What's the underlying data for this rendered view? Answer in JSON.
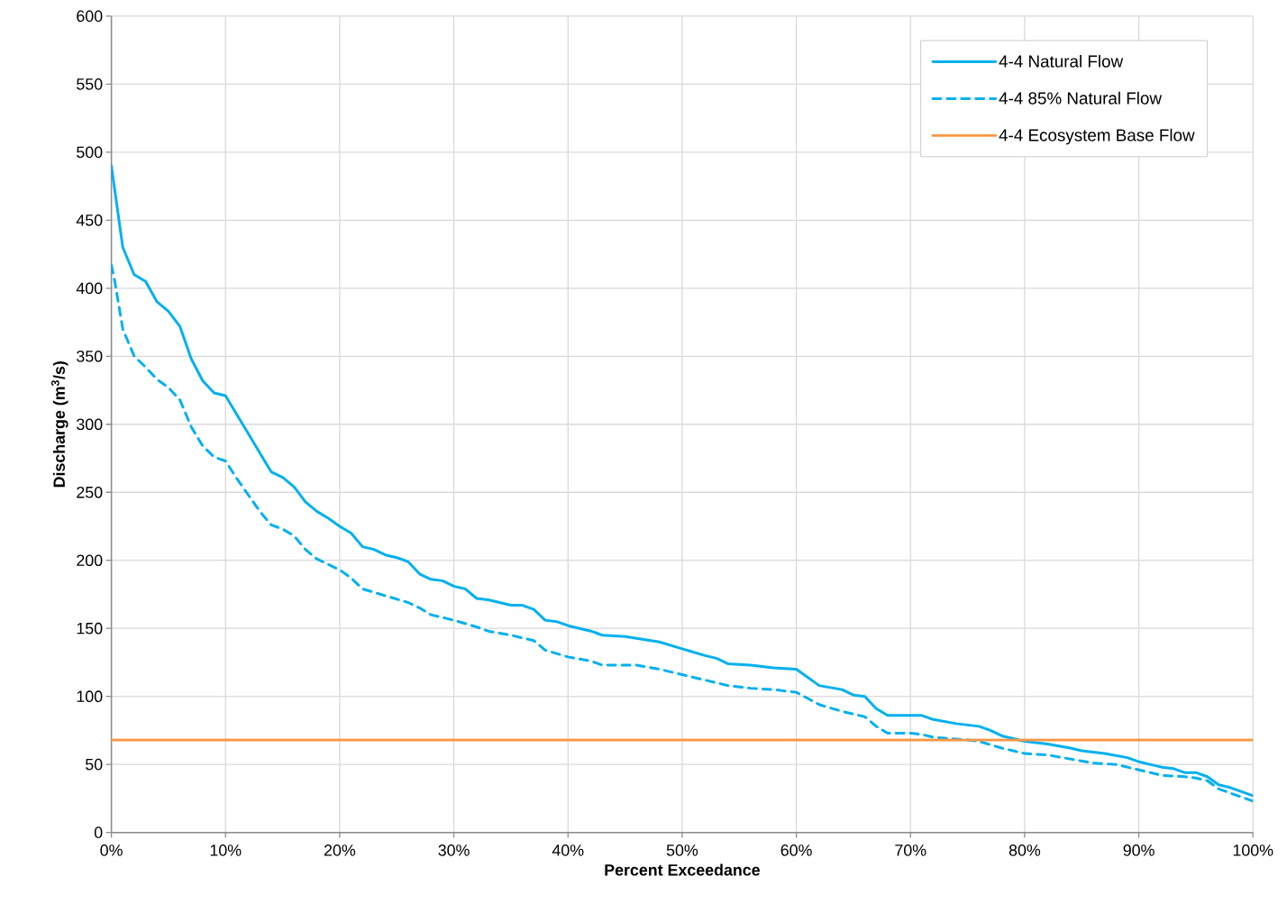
{
  "chart_data": {
    "type": "line",
    "xlabel": "Percent Exceedance",
    "ylabel": "Discharge (m$^{3}$/s)",
    "xlim": [
      0,
      100
    ],
    "ylim": [
      0,
      600
    ],
    "xticks": [
      {
        "value": 0,
        "label": "0%"
      },
      {
        "value": 10,
        "label": "10%"
      },
      {
        "value": 20,
        "label": "20%"
      },
      {
        "value": 30,
        "label": "30%"
      },
      {
        "value": 40,
        "label": "40%"
      },
      {
        "value": 50,
        "label": "50%"
      },
      {
        "value": 60,
        "label": "60%"
      },
      {
        "value": 70,
        "label": "70%"
      },
      {
        "value": 80,
        "label": "80%"
      },
      {
        "value": 90,
        "label": "90%"
      },
      {
        "value": 100,
        "label": "100%"
      }
    ],
    "yticks": [
      0,
      50,
      100,
      150,
      200,
      250,
      300,
      350,
      400,
      450,
      500,
      550,
      600
    ],
    "grid": true,
    "legend": "top right",
    "marker": "none",
    "series": [
      {
        "name": "4-4 Natural Flow",
        "color": "#00b0f0",
        "line_style": "solid",
        "x": [
          0,
          1,
          2,
          3,
          4,
          5,
          6,
          7,
          8,
          9,
          10,
          11,
          12,
          13,
          14,
          15,
          16,
          17,
          18,
          19,
          20,
          21,
          22,
          23,
          24,
          25,
          26,
          27,
          28,
          29,
          30,
          31,
          32,
          33,
          34,
          35,
          36,
          37,
          38,
          39,
          40,
          42,
          43,
          45,
          48,
          50,
          52,
          53,
          54,
          56,
          58,
          60,
          62,
          64,
          65,
          66,
          67,
          68,
          70,
          71,
          72,
          74,
          76,
          77,
          78,
          80,
          82,
          84,
          85,
          87,
          89,
          90,
          92,
          93,
          94,
          95,
          96,
          97,
          98,
          100
        ],
        "values": [
          490,
          430,
          410,
          405,
          390,
          383,
          372,
          348,
          332,
          323,
          321,
          307,
          293,
          279,
          265,
          261,
          254,
          243,
          236,
          231,
          225,
          220,
          210,
          208,
          204,
          202,
          199,
          190,
          186,
          185,
          181,
          179,
          172,
          171,
          169,
          167,
          167,
          164,
          156,
          155,
          152,
          148,
          145,
          144,
          140,
          135,
          130,
          128,
          124,
          123,
          121,
          120,
          108,
          105,
          101,
          100,
          91,
          86,
          86,
          86,
          83,
          80,
          78,
          75,
          71,
          67,
          65,
          62,
          60,
          58,
          55,
          52,
          48,
          47,
          44,
          44,
          41,
          35,
          33,
          27
        ]
      },
      {
        "name": "4-4 85% Natural Flow",
        "color": "#00b0f0",
        "line_style": "dashed",
        "x": [
          0,
          0.3,
          1,
          2,
          3,
          4,
          5,
          6,
          7,
          8,
          9,
          10,
          11,
          12,
          13,
          14,
          15,
          16,
          17,
          18,
          20,
          21,
          22,
          24,
          26,
          27,
          28,
          30,
          32,
          33,
          35,
          36,
          37,
          38,
          40,
          42,
          43,
          46,
          48,
          50,
          52,
          54,
          56,
          58,
          60,
          62,
          64,
          66,
          67,
          68,
          70,
          71,
          72,
          75,
          76,
          78,
          80,
          82,
          84,
          86,
          88,
          90,
          92,
          94,
          95,
          96,
          97,
          98,
          100
        ],
        "values": [
          417,
          405,
          370,
          350,
          342,
          333,
          327,
          318,
          298,
          284,
          276,
          273,
          260,
          248,
          236,
          226,
          223,
          218,
          208,
          201,
          193,
          187,
          179,
          174,
          169,
          165,
          160,
          156,
          151,
          148,
          145,
          143,
          141,
          134,
          129,
          126,
          123,
          123,
          120,
          116,
          112,
          108,
          106,
          105,
          103,
          94,
          89,
          85,
          78,
          73,
          73,
          72,
          70,
          68,
          67,
          62,
          58,
          57,
          54,
          51,
          50,
          46,
          42,
          41,
          40,
          38,
          32,
          29,
          23
        ]
      },
      {
        "name": "4-4 Ecosystem Base Flow",
        "color": "#f79646",
        "line_style": "solid",
        "x": [
          0,
          100
        ],
        "values": [
          68,
          68
        ]
      }
    ]
  }
}
